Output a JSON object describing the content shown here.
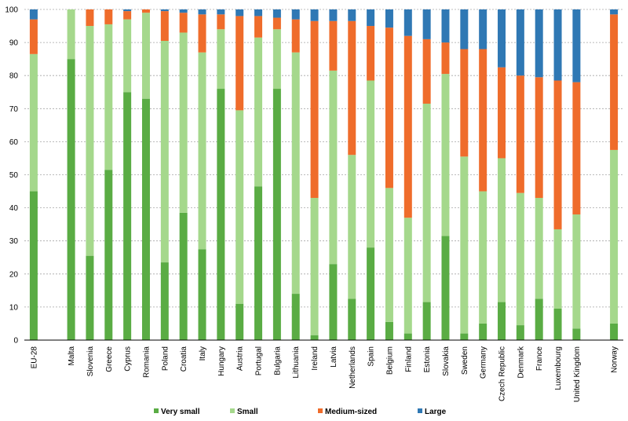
{
  "chart_data": {
    "type": "bar",
    "stacked": true,
    "percent_stacked": true,
    "title": "",
    "xlabel": "",
    "ylabel": "",
    "ylim": [
      0,
      100
    ],
    "yticks": [
      0,
      10,
      20,
      30,
      40,
      50,
      60,
      70,
      80,
      90,
      100
    ],
    "grid": true,
    "legend_position": "bottom",
    "categories": [
      "EU-28",
      "",
      "Malta",
      "Slovenia",
      "Greece",
      "Cyprus",
      "Romania",
      "Poland",
      "Croatia",
      "Italy",
      "Hungary",
      "Austria",
      "Portugal",
      "Bulgaria",
      "Lithuania",
      "Ireland",
      "Latvia",
      "Netherlands",
      "Spain",
      "Belgium",
      "Finland",
      "Estonia",
      "Slovakia",
      "Sweden",
      "Germany",
      "Czech Republic",
      "Denmark",
      "France",
      "Luxembourg",
      "United Kingdom",
      "",
      "Norway"
    ],
    "series": [
      {
        "name": "Very small",
        "color": "#5aac44",
        "values": [
          45,
          null,
          85,
          25.5,
          51.5,
          75,
          73,
          23.5,
          38.5,
          27.5,
          76,
          11,
          46.5,
          76,
          14,
          1.5,
          23,
          12.5,
          28,
          5.5,
          2,
          11.5,
          31.5,
          2,
          5,
          11.5,
          4.5,
          12.5,
          9.5,
          3.5,
          null,
          5
        ]
      },
      {
        "name": "Small",
        "color": "#a5d88c",
        "values": [
          41.5,
          null,
          15,
          69.5,
          44,
          22,
          26,
          67,
          54.5,
          59.5,
          18,
          58.5,
          45,
          18,
          73,
          41.5,
          58.5,
          43.5,
          50.5,
          40.5,
          35,
          60,
          49,
          53.5,
          40,
          43.5,
          40,
          30.5,
          24,
          34.5,
          null,
          52.5
        ]
      },
      {
        "name": "Medium-sized",
        "color": "#ef6c2b",
        "values": [
          10.5,
          null,
          0,
          5,
          4.5,
          2.5,
          1,
          9,
          6,
          11.5,
          4.5,
          28.5,
          6.5,
          3.5,
          10,
          53.5,
          15,
          40.5,
          16.5,
          48.5,
          55,
          19.5,
          9.5,
          32.5,
          43,
          27.5,
          35.5,
          36.5,
          45,
          40,
          null,
          41
        ]
      },
      {
        "name": "Large",
        "color": "#2f78b4",
        "values": [
          3,
          null,
          0,
          0,
          0,
          0.5,
          0,
          0.5,
          1,
          1.5,
          1.5,
          2,
          2,
          2.5,
          3,
          3.5,
          3.5,
          3.5,
          5,
          5.5,
          8,
          9,
          10,
          12,
          12,
          17.5,
          20,
          20.5,
          21.5,
          22,
          null,
          1.5
        ]
      }
    ]
  }
}
